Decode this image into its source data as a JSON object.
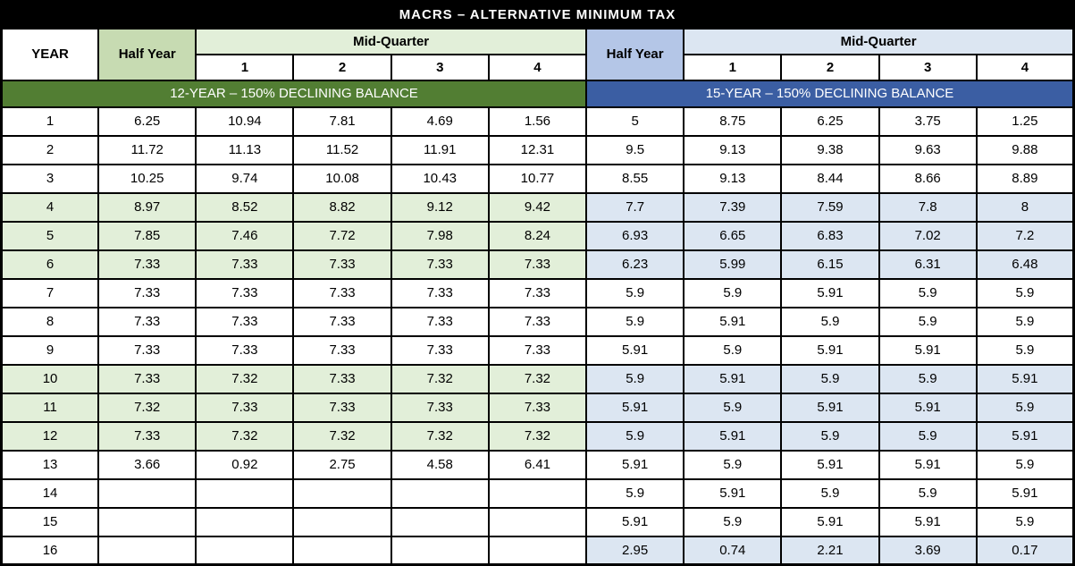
{
  "title": "MACRS – ALTERNATIVE MINIMUM TAX",
  "header": {
    "year": "YEAR",
    "half_year": "Half Year",
    "mid_quarter": "Mid-Quarter",
    "quarters": [
      "1",
      "2",
      "3",
      "4"
    ]
  },
  "sections": {
    "left": "12-YEAR – 150% DECLINING BALANCE",
    "right": "15-YEAR – 150% DECLINING BALANCE"
  },
  "colors": {
    "title_bg": "#000000",
    "title_text": "#FFFFFF",
    "green_section": "#527E33",
    "green_half_year": "#C7DBB2",
    "green_band": "#E2EFD9",
    "blue_section": "#3B5EA3",
    "blue_half_year": "#B4C6E7",
    "blue_band": "#DCE6F2",
    "border": "#000000"
  },
  "rows": [
    {
      "year": "1",
      "left": [
        "6.25",
        "10.94",
        "7.81",
        "4.69",
        "1.56"
      ],
      "right": [
        "5",
        "8.75",
        "6.25",
        "3.75",
        "1.25"
      ],
      "left_band": false,
      "right_band": false
    },
    {
      "year": "2",
      "left": [
        "11.72",
        "11.13",
        "11.52",
        "11.91",
        "12.31"
      ],
      "right": [
        "9.5",
        "9.13",
        "9.38",
        "9.63",
        "9.88"
      ],
      "left_band": false,
      "right_band": false
    },
    {
      "year": "3",
      "left": [
        "10.25",
        "9.74",
        "10.08",
        "10.43",
        "10.77"
      ],
      "right": [
        "8.55",
        "9.13",
        "8.44",
        "8.66",
        "8.89"
      ],
      "left_band": false,
      "right_band": false
    },
    {
      "year": "4",
      "left": [
        "8.97",
        "8.52",
        "8.82",
        "9.12",
        "9.42"
      ],
      "right": [
        "7.7",
        "7.39",
        "7.59",
        "7.8",
        "8"
      ],
      "left_band": true,
      "right_band": true
    },
    {
      "year": "5",
      "left": [
        "7.85",
        "7.46",
        "7.72",
        "7.98",
        "8.24"
      ],
      "right": [
        "6.93",
        "6.65",
        "6.83",
        "7.02",
        "7.2"
      ],
      "left_band": true,
      "right_band": true
    },
    {
      "year": "6",
      "left": [
        "7.33",
        "7.33",
        "7.33",
        "7.33",
        "7.33"
      ],
      "right": [
        "6.23",
        "5.99",
        "6.15",
        "6.31",
        "6.48"
      ],
      "left_band": true,
      "right_band": true
    },
    {
      "year": "7",
      "left": [
        "7.33",
        "7.33",
        "7.33",
        "7.33",
        "7.33"
      ],
      "right": [
        "5.9",
        "5.9",
        "5.91",
        "5.9",
        "5.9"
      ],
      "left_band": false,
      "right_band": false
    },
    {
      "year": "8",
      "left": [
        "7.33",
        "7.33",
        "7.33",
        "7.33",
        "7.33"
      ],
      "right": [
        "5.9",
        "5.91",
        "5.9",
        "5.9",
        "5.9"
      ],
      "left_band": false,
      "right_band": false
    },
    {
      "year": "9",
      "left": [
        "7.33",
        "7.33",
        "7.33",
        "7.33",
        "7.33"
      ],
      "right": [
        "5.91",
        "5.9",
        "5.91",
        "5.91",
        "5.9"
      ],
      "left_band": false,
      "right_band": false
    },
    {
      "year": "10",
      "left": [
        "7.33",
        "7.32",
        "7.33",
        "7.32",
        "7.32"
      ],
      "right": [
        "5.9",
        "5.91",
        "5.9",
        "5.9",
        "5.91"
      ],
      "left_band": true,
      "right_band": true
    },
    {
      "year": "11",
      "left": [
        "7.32",
        "7.33",
        "7.33",
        "7.33",
        "7.33"
      ],
      "right": [
        "5.91",
        "5.9",
        "5.91",
        "5.91",
        "5.9"
      ],
      "left_band": true,
      "right_band": true
    },
    {
      "year": "12",
      "left": [
        "7.33",
        "7.32",
        "7.32",
        "7.32",
        "7.32"
      ],
      "right": [
        "5.9",
        "5.91",
        "5.9",
        "5.9",
        "5.91"
      ],
      "left_band": true,
      "right_band": true
    },
    {
      "year": "13",
      "left": [
        "3.66",
        "0.92",
        "2.75",
        "4.58",
        "6.41"
      ],
      "right": [
        "5.91",
        "5.9",
        "5.91",
        "5.91",
        "5.9"
      ],
      "left_band": false,
      "right_band": false
    },
    {
      "year": "14",
      "left": [
        "",
        "",
        "",
        "",
        ""
      ],
      "right": [
        "5.9",
        "5.91",
        "5.9",
        "5.9",
        "5.91"
      ],
      "left_band": false,
      "right_band": false
    },
    {
      "year": "15",
      "left": [
        "",
        "",
        "",
        "",
        ""
      ],
      "right": [
        "5.91",
        "5.9",
        "5.91",
        "5.91",
        "5.9"
      ],
      "left_band": false,
      "right_band": false
    },
    {
      "year": "16",
      "left": [
        "",
        "",
        "",
        "",
        ""
      ],
      "right": [
        "2.95",
        "0.74",
        "2.21",
        "3.69",
        "0.17"
      ],
      "left_band": false,
      "right_band": true
    }
  ]
}
